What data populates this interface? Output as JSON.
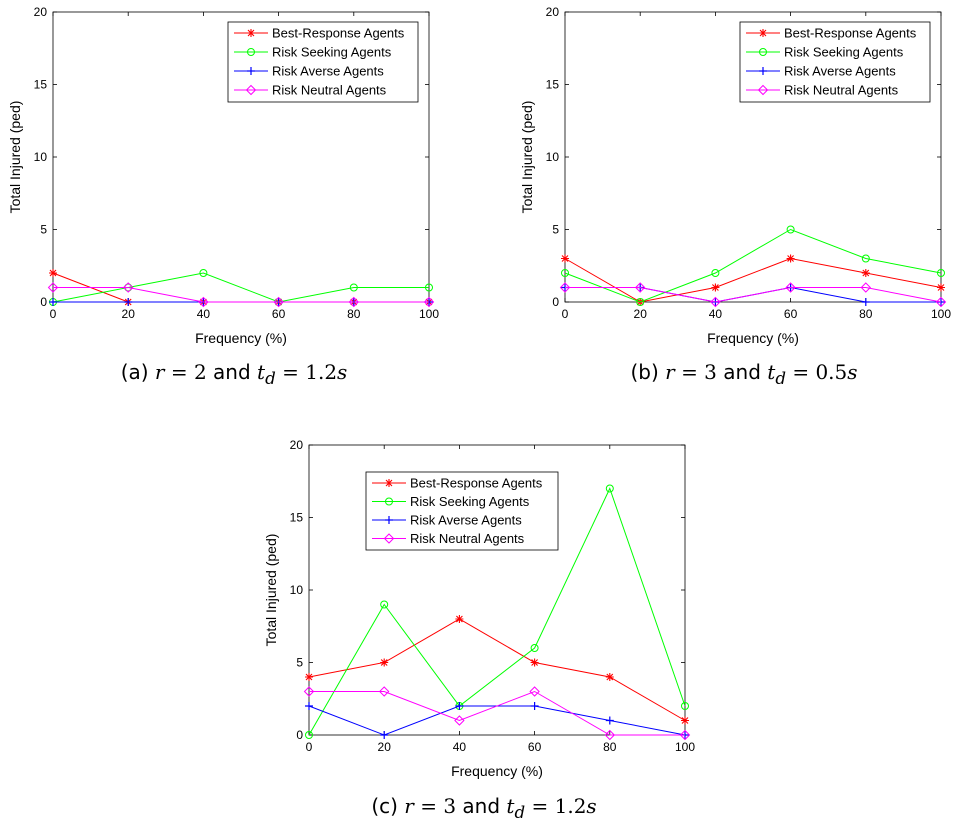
{
  "series_styles": [
    {
      "name": "Best-Response Agents",
      "color": "#ff0000",
      "marker": "asterisk"
    },
    {
      "name": "Risk Seeking Agents",
      "color": "#00ff00",
      "marker": "circle"
    },
    {
      "name": "Risk Averse Agents",
      "color": "#0000ff",
      "marker": "plus"
    },
    {
      "name": "Risk Neutral Agents",
      "color": "#ff00ff",
      "marker": "diamond"
    }
  ],
  "captions": [
    {
      "label": "(a)",
      "var1": "r",
      "eq1": "= 2",
      "and": "and",
      "var2": "t",
      "sub2": "d",
      "eq2": "= 1.2",
      "unit": "s"
    },
    {
      "label": "(b)",
      "var1": "r",
      "eq1": "= 3",
      "and": "and",
      "var2": "t",
      "sub2": "d",
      "eq2": "= 0.5",
      "unit": "s"
    },
    {
      "label": "(c)",
      "var1": "r",
      "eq1": "= 3",
      "and": "and",
      "var2": "t",
      "sub2": "d",
      "eq2": "= 1.2",
      "unit": "s"
    }
  ],
  "chart_data": [
    {
      "type": "line",
      "xlabel": "Frequency (%)",
      "ylabel": "Total Injured (ped)",
      "x": [
        0,
        20,
        40,
        60,
        80,
        100
      ],
      "xlim": [
        0,
        100
      ],
      "ylim": [
        0,
        20
      ],
      "xticks": [
        0,
        20,
        40,
        60,
        80,
        100
      ],
      "yticks": [
        0,
        5,
        10,
        15,
        20
      ],
      "legend": "top-right",
      "series": [
        {
          "name": "Best-Response Agents",
          "values": [
            2,
            0,
            0,
            0,
            0,
            0
          ]
        },
        {
          "name": "Risk Seeking Agents",
          "values": [
            0,
            1,
            2,
            0,
            1,
            1
          ]
        },
        {
          "name": "Risk Averse Agents",
          "values": [
            0,
            0,
            0,
            0,
            0,
            0
          ]
        },
        {
          "name": "Risk Neutral Agents",
          "values": [
            1,
            1,
            0,
            0,
            0,
            0
          ]
        }
      ]
    },
    {
      "type": "line",
      "xlabel": "Frequency (%)",
      "ylabel": "Total Injured (ped)",
      "x": [
        0,
        20,
        40,
        60,
        80,
        100
      ],
      "xlim": [
        0,
        100
      ],
      "ylim": [
        0,
        20
      ],
      "xticks": [
        0,
        20,
        40,
        60,
        80,
        100
      ],
      "yticks": [
        0,
        5,
        10,
        15,
        20
      ],
      "legend": "top-right",
      "series": [
        {
          "name": "Best-Response Agents",
          "values": [
            3,
            0,
            1,
            3,
            2,
            1
          ]
        },
        {
          "name": "Risk Seeking Agents",
          "values": [
            2,
            0,
            2,
            5,
            3,
            2
          ]
        },
        {
          "name": "Risk Averse Agents",
          "values": [
            1,
            1,
            0,
            1,
            0,
            0
          ]
        },
        {
          "name": "Risk Neutral Agents",
          "values": [
            1,
            1,
            0,
            1,
            1,
            0
          ]
        }
      ]
    },
    {
      "type": "line",
      "xlabel": "Frequency (%)",
      "ylabel": "Total Injured (ped)",
      "x": [
        0,
        20,
        40,
        60,
        80,
        100
      ],
      "xlim": [
        0,
        100
      ],
      "ylim": [
        0,
        20
      ],
      "xticks": [
        0,
        20,
        40,
        60,
        80,
        100
      ],
      "yticks": [
        0,
        5,
        10,
        15,
        20
      ],
      "legend": "top-right",
      "series": [
        {
          "name": "Best-Response Agents",
          "values": [
            4,
            5,
            8,
            5,
            4,
            1
          ]
        },
        {
          "name": "Risk Seeking Agents",
          "values": [
            0,
            9,
            2,
            6,
            17,
            2
          ]
        },
        {
          "name": "Risk Averse Agents",
          "values": [
            2,
            0,
            2,
            2,
            1,
            0
          ]
        },
        {
          "name": "Risk Neutral Agents",
          "values": [
            3,
            3,
            1,
            3,
            0,
            0
          ]
        }
      ]
    }
  ]
}
